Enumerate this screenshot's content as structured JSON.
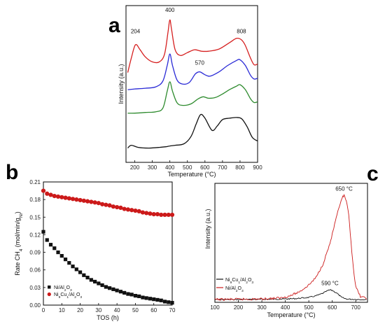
{
  "panels": {
    "a": "a",
    "b": "b",
    "c": "c"
  },
  "chart_data": [
    {
      "id": "a",
      "type": "line",
      "xlabel": "Temperature (°C)",
      "ylabel": "Intensity (a.u.)",
      "xlim": [
        150,
        900
      ],
      "xticks": [
        200,
        300,
        400,
        500,
        600,
        700,
        800,
        900
      ],
      "annotations": [
        {
          "text": "204",
          "x": 204,
          "y": 9.05
        },
        {
          "text": "400",
          "x": 400,
          "y": 10.55
        },
        {
          "text": "808",
          "x": 808,
          "y": 9.05
        },
        {
          "text": "570",
          "x": 570,
          "y": 6.85
        }
      ],
      "series": [
        {
          "color": "#d62020",
          "x": [
            160,
            180,
            204,
            230,
            260,
            300,
            340,
            370,
            390,
            400,
            410,
            430,
            460,
            500,
            540,
            580,
            620,
            680,
            740,
            780,
            808,
            830,
            860,
            880,
            900
          ],
          "y": [
            6.3,
            7.3,
            8.25,
            7.9,
            7.4,
            7.05,
            7.05,
            7.6,
            9.2,
            10.0,
            9.3,
            7.9,
            7.5,
            7.7,
            7.9,
            7.8,
            7.8,
            7.95,
            8.4,
            8.7,
            8.6,
            8.2,
            7.3,
            6.85,
            6.9
          ]
        },
        {
          "color": "#2a2ad6",
          "x": [
            160,
            200,
            260,
            320,
            360,
            385,
            400,
            415,
            440,
            470,
            510,
            545,
            570,
            600,
            630,
            680,
            730,
            780,
            800,
            830,
            860,
            880,
            900
          ],
          "y": [
            5.1,
            5.15,
            5.2,
            5.3,
            5.7,
            6.8,
            7.6,
            6.8,
            5.8,
            5.5,
            5.6,
            6.2,
            6.35,
            6.15,
            6.05,
            6.35,
            6.8,
            7.15,
            7.2,
            6.8,
            6.1,
            5.85,
            5.9
          ]
        },
        {
          "color": "#2e8b2e",
          "x": [
            160,
            200,
            260,
            320,
            360,
            385,
            400,
            415,
            440,
            470,
            520,
            560,
            590,
            620,
            660,
            700,
            740,
            780,
            800,
            830,
            860,
            880,
            900
          ],
          "y": [
            3.45,
            3.45,
            3.5,
            3.55,
            3.8,
            5.0,
            5.65,
            5.0,
            4.2,
            4.0,
            4.1,
            4.45,
            4.6,
            4.5,
            4.55,
            4.8,
            5.1,
            5.35,
            5.45,
            5.1,
            4.45,
            4.2,
            4.25
          ]
        },
        {
          "color": "#111111",
          "x": [
            160,
            180,
            220,
            280,
            340,
            380,
            400,
            430,
            480,
            520,
            550,
            575,
            600,
            640,
            670,
            700,
            740,
            780,
            810,
            840,
            870,
            900
          ],
          "y": [
            1.0,
            1.2,
            1.05,
            1.0,
            1.05,
            1.1,
            1.15,
            1.2,
            1.3,
            1.8,
            2.7,
            3.35,
            3.1,
            2.25,
            2.55,
            3.0,
            3.1,
            3.15,
            3.05,
            2.5,
            1.75,
            1.5
          ]
        }
      ]
    },
    {
      "id": "b",
      "type": "scatter",
      "xlabel": "TOS (h)",
      "ylabel": "Rate CH4 (mol/min/gNi)",
      "xlim": [
        0,
        70
      ],
      "ylim": [
        0.0,
        0.21
      ],
      "xticks": [
        0,
        10,
        20,
        30,
        40,
        50,
        60,
        70
      ],
      "yticks": [
        "0.00",
        "0.03",
        "0.06",
        "0.09",
        "0.12",
        "0.15",
        "0.18",
        "0.21"
      ],
      "legend_position": "bottom-left",
      "series": [
        {
          "name": "Ni/Al2O3",
          "marker": "square",
          "color": "#111111",
          "x": [
            0,
            2,
            4,
            6,
            8,
            10,
            12,
            14,
            16,
            18,
            20,
            22,
            24,
            26,
            28,
            30,
            32,
            34,
            36,
            38,
            40,
            42,
            44,
            46,
            48,
            50,
            52,
            54,
            56,
            58,
            60,
            62,
            64,
            66,
            68,
            70
          ],
          "y": [
            0.125,
            0.111,
            0.103,
            0.097,
            0.09,
            0.084,
            0.078,
            0.072,
            0.066,
            0.061,
            0.056,
            0.051,
            0.047,
            0.043,
            0.04,
            0.037,
            0.034,
            0.031,
            0.029,
            0.027,
            0.025,
            0.023,
            0.021,
            0.019,
            0.018,
            0.016,
            0.015,
            0.013,
            0.012,
            0.011,
            0.01,
            0.009,
            0.008,
            0.006,
            0.005,
            0.004
          ]
        },
        {
          "name": "Ni9Cu1/Al2O3",
          "marker": "circle",
          "color": "#cc1a1a",
          "x": [
            0,
            2,
            4,
            6,
            8,
            10,
            12,
            14,
            16,
            18,
            20,
            22,
            24,
            26,
            28,
            30,
            32,
            34,
            36,
            38,
            40,
            42,
            44,
            46,
            48,
            50,
            52,
            54,
            56,
            58,
            60,
            62,
            64,
            66,
            68,
            70
          ],
          "y": [
            0.195,
            0.19,
            0.188,
            0.186,
            0.185,
            0.184,
            0.183,
            0.182,
            0.181,
            0.18,
            0.179,
            0.178,
            0.177,
            0.176,
            0.175,
            0.174,
            0.172,
            0.171,
            0.17,
            0.168,
            0.167,
            0.166,
            0.164,
            0.163,
            0.162,
            0.161,
            0.16,
            0.158,
            0.157,
            0.156,
            0.155,
            0.155,
            0.154,
            0.154,
            0.154,
            0.154
          ]
        }
      ]
    },
    {
      "id": "c",
      "type": "line",
      "xlabel": "Temperature (°C)",
      "ylabel": "Intensity (a.u.)",
      "xlim": [
        100,
        750
      ],
      "xticks": [
        100,
        200,
        300,
        400,
        500,
        600,
        700
      ],
      "legend_position": "left",
      "annotations": [
        {
          "text": "650 °C",
          "x": 650,
          "y": 10.5,
          "color": "#cc1a1a"
        },
        {
          "text": "590 °C",
          "x": 590,
          "y": 1.4,
          "color": "#111111"
        }
      ],
      "series": [
        {
          "name": "Ni9Cu1/Al2O3",
          "color": "#111111",
          "x": [
            100,
            200,
            300,
            400,
            450,
            500,
            530,
            560,
            580,
            590,
            600,
            620,
            640,
            660,
            690,
            720,
            750
          ],
          "y": [
            0.0,
            0.0,
            0.02,
            0.05,
            0.1,
            0.2,
            0.35,
            0.6,
            0.85,
            0.92,
            0.88,
            0.6,
            0.2,
            0.05,
            0.02,
            0.0,
            0.0
          ]
        },
        {
          "name": "Ni/Al2O3",
          "color": "#cc1a1a",
          "x": [
            100,
            200,
            300,
            380,
            420,
            460,
            500,
            530,
            560,
            590,
            610,
            630,
            645,
            650,
            660,
            670,
            680,
            690,
            700,
            720,
            750
          ],
          "y": [
            0.0,
            0.02,
            0.05,
            0.15,
            0.35,
            0.75,
            1.4,
            2.1,
            3.4,
            5.4,
            7.2,
            9.0,
            9.9,
            10.0,
            9.5,
            8.1,
            5.5,
            3.0,
            1.2,
            0.3,
            0.05
          ]
        }
      ]
    }
  ]
}
